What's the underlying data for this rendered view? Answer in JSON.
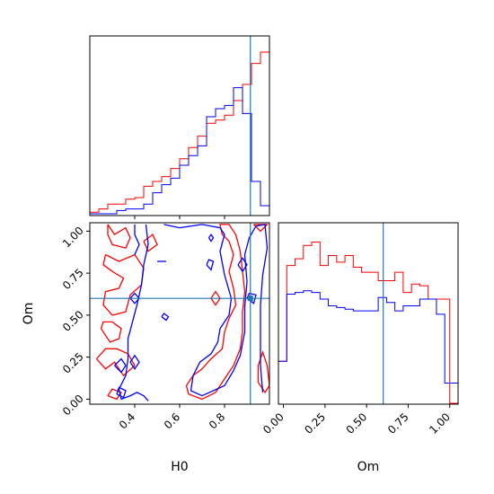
{
  "chart_data": {
    "type": "corner_plot",
    "parameters": [
      "H0",
      "Om"
    ],
    "series_colors": [
      "#ff0000",
      "#0000ff"
    ],
    "truth": {
      "H0": 0.915,
      "Om": 0.6,
      "color": "#1f77b4"
    },
    "h0_hist": {
      "xlim": [
        0.2,
        1.0
      ],
      "x_ticks": [
        "0.4",
        "0.6",
        "0.8"
      ],
      "x_tick_values": [
        0.4,
        0.6,
        0.8
      ],
      "bin_edges": [
        0.2,
        0.24,
        0.28,
        0.32,
        0.36,
        0.4,
        0.44,
        0.48,
        0.52,
        0.56,
        0.6,
        0.64,
        0.68,
        0.72,
        0.76,
        0.8,
        0.84,
        0.88,
        0.92,
        0.96,
        1.0
      ],
      "red": [
        0.01,
        0.03,
        0.06,
        0.06,
        0.09,
        0.1,
        0.17,
        0.2,
        0.23,
        0.28,
        0.34,
        0.41,
        0.48,
        0.56,
        0.58,
        0.61,
        0.7,
        0.8,
        0.93,
        1.0
      ],
      "blue": [
        0.0,
        0.0,
        0.0,
        0.02,
        0.03,
        0.03,
        0.06,
        0.13,
        0.18,
        0.22,
        0.3,
        0.36,
        0.42,
        0.6,
        0.65,
        0.67,
        0.78,
        0.62,
        0.2,
        0.05
      ]
    },
    "om_hist": {
      "xlim": [
        -0.03,
        1.05
      ],
      "x_ticks": [
        "0.00",
        "0.25",
        "0.50",
        "0.75",
        "1.00"
      ],
      "x_tick_values": [
        0.0,
        0.25,
        0.5,
        0.75,
        1.0
      ],
      "bin_edges": [
        -0.03,
        0.02,
        0.07,
        0.12,
        0.17,
        0.22,
        0.27,
        0.32,
        0.37,
        0.42,
        0.47,
        0.52,
        0.57,
        0.62,
        0.67,
        0.72,
        0.77,
        0.82,
        0.87,
        0.92,
        0.97,
        1.0,
        1.05
      ],
      "red": [
        0.25,
        0.82,
        0.86,
        0.94,
        0.96,
        0.82,
        0.88,
        0.84,
        0.88,
        0.81,
        0.78,
        0.78,
        0.73,
        0.73,
        0.78,
        0.66,
        0.71,
        0.7,
        0.62,
        0.62,
        0.62,
        0.0
      ],
      "blue": [
        0.25,
        0.65,
        0.66,
        0.67,
        0.66,
        0.62,
        0.58,
        0.57,
        0.56,
        0.55,
        0.55,
        0.55,
        0.63,
        0.6,
        0.55,
        0.58,
        0.58,
        0.62,
        0.62,
        0.53,
        0.12,
        0.12
      ]
    },
    "contour": {
      "xlabel": "H0",
      "ylabel": "Om",
      "xlim": [
        0.2,
        1.0
      ],
      "ylim": [
        -0.03,
        1.05
      ],
      "x_ticks": [
        "0.4",
        "0.6",
        "0.8"
      ],
      "x_tick_values": [
        0.4,
        0.6,
        0.8
      ],
      "y_ticks": [
        "0.00",
        "0.25",
        "0.50",
        "0.75",
        "1.00"
      ],
      "y_tick_values": [
        0.0,
        0.25,
        0.5,
        0.75,
        1.0
      ],
      "red_contours": [
        [
          [
            0.28,
            1.04
          ],
          [
            0.31,
            0.98
          ],
          [
            0.36,
            1.02
          ],
          [
            0.38,
            0.96
          ],
          [
            0.36,
            0.9
          ],
          [
            0.3,
            0.92
          ],
          [
            0.28,
            0.98
          ],
          [
            0.28,
            1.04
          ]
        ],
        [
          [
            0.27,
            0.86
          ],
          [
            0.33,
            0.82
          ],
          [
            0.4,
            0.86
          ],
          [
            0.44,
            0.78
          ],
          [
            0.43,
            0.68
          ],
          [
            0.38,
            0.62
          ],
          [
            0.36,
            0.52
          ],
          [
            0.3,
            0.5
          ],
          [
            0.26,
            0.56
          ],
          [
            0.27,
            0.64
          ],
          [
            0.33,
            0.66
          ],
          [
            0.35,
            0.72
          ],
          [
            0.3,
            0.76
          ],
          [
            0.26,
            0.8
          ],
          [
            0.27,
            0.86
          ]
        ],
        [
          [
            0.25,
            0.42
          ],
          [
            0.29,
            0.34
          ],
          [
            0.33,
            0.36
          ],
          [
            0.34,
            0.42
          ],
          [
            0.3,
            0.46
          ],
          [
            0.26,
            0.46
          ],
          [
            0.25,
            0.42
          ]
        ],
        [
          [
            0.23,
            0.24
          ],
          [
            0.27,
            0.18
          ],
          [
            0.31,
            0.22
          ],
          [
            0.35,
            0.14
          ],
          [
            0.4,
            0.2
          ],
          [
            0.37,
            0.27
          ],
          [
            0.32,
            0.3
          ],
          [
            0.27,
            0.3
          ],
          [
            0.23,
            0.24
          ]
        ],
        [
          [
            0.28,
            0.02
          ],
          [
            0.32,
            0.0
          ],
          [
            0.34,
            0.04
          ],
          [
            0.3,
            0.06
          ],
          [
            0.28,
            0.02
          ]
        ],
        [
          [
            0.44,
            0.94
          ],
          [
            0.46,
            0.88
          ],
          [
            0.5,
            0.92
          ],
          [
            0.48,
            0.98
          ],
          [
            0.44,
            0.94
          ]
        ],
        [
          [
            0.79,
            0.98
          ],
          [
            0.82,
            0.94
          ],
          [
            0.84,
            0.86
          ],
          [
            0.82,
            0.76
          ],
          [
            0.84,
            0.66
          ],
          [
            0.85,
            0.56
          ],
          [
            0.82,
            0.48
          ],
          [
            0.8,
            0.4
          ],
          [
            0.79,
            0.3
          ],
          [
            0.74,
            0.24
          ],
          [
            0.7,
            0.18
          ],
          [
            0.66,
            0.14
          ],
          [
            0.63,
            0.08
          ],
          [
            0.64,
            0.03
          ],
          [
            0.7,
            0.0
          ],
          [
            0.76,
            0.04
          ],
          [
            0.8,
            0.12
          ],
          [
            0.84,
            0.2
          ],
          [
            0.87,
            0.3
          ],
          [
            0.88,
            0.4
          ],
          [
            0.88,
            0.52
          ],
          [
            0.89,
            0.64
          ],
          [
            0.88,
            0.76
          ],
          [
            0.87,
            0.88
          ],
          [
            0.85,
            0.98
          ],
          [
            0.82,
            1.04
          ],
          [
            0.78,
            1.04
          ],
          [
            0.79,
            0.98
          ]
        ],
        [
          [
            0.74,
            0.6
          ],
          [
            0.76,
            0.56
          ],
          [
            0.78,
            0.6
          ],
          [
            0.76,
            0.64
          ],
          [
            0.74,
            0.6
          ]
        ],
        [
          [
            0.93,
            1.04
          ],
          [
            0.96,
            1.0
          ],
          [
            0.99,
            1.04
          ],
          [
            0.93,
            1.04
          ]
        ],
        [
          [
            0.95,
            0.1
          ],
          [
            0.98,
            0.04
          ],
          [
            1.0,
            0.08
          ],
          [
            0.99,
            0.2
          ],
          [
            0.97,
            0.28
          ],
          [
            0.95,
            0.2
          ],
          [
            0.95,
            0.1
          ]
        ]
      ],
      "blue_contours": [
        [
          [
            0.53,
            1.04
          ],
          [
            0.6,
            1.02
          ],
          [
            0.7,
            1.04
          ],
          [
            0.78,
            1.02
          ],
          [
            0.8,
            0.98
          ],
          [
            0.78,
            0.88
          ],
          [
            0.8,
            0.74
          ],
          [
            0.83,
            0.6
          ],
          [
            0.82,
            0.5
          ],
          [
            0.78,
            0.42
          ],
          [
            0.77,
            0.34
          ],
          [
            0.74,
            0.27
          ],
          [
            0.69,
            0.22
          ],
          [
            0.66,
            0.14
          ],
          [
            0.65,
            0.05
          ],
          [
            0.7,
            0.02
          ],
          [
            0.8,
            0.08
          ],
          [
            0.84,
            0.17
          ],
          [
            0.87,
            0.26
          ],
          [
            0.89,
            0.4
          ],
          [
            0.89,
            0.55
          ],
          [
            0.9,
            0.7
          ],
          [
            0.89,
            0.86
          ],
          [
            0.91,
            0.96
          ],
          [
            0.94,
            1.03
          ],
          [
            0.98,
            1.04
          ],
          [
            0.99,
            0.9
          ],
          [
            0.97,
            0.74
          ],
          [
            0.96,
            0.56
          ],
          [
            0.96,
            0.4
          ],
          [
            0.96,
            0.2
          ],
          [
            0.97,
            0.04
          ]
        ],
        [
          [
            0.45,
            1.04
          ],
          [
            0.46,
            0.92
          ],
          [
            0.44,
            0.8
          ],
          [
            0.43,
            0.68
          ],
          [
            0.41,
            0.56
          ],
          [
            0.39,
            0.46
          ],
          [
            0.37,
            0.36
          ],
          [
            0.37,
            0.24
          ],
          [
            0.36,
            0.14
          ],
          [
            0.33,
            0.06
          ],
          [
            0.34,
            0.0
          ],
          [
            0.38,
            0.02
          ],
          [
            0.41,
            0.04
          ],
          [
            0.44,
            0.02
          ],
          [
            0.46,
            -0.01
          ]
        ],
        [
          [
            0.4,
            1.04
          ],
          [
            0.4,
            0.98
          ],
          [
            0.42,
            0.92
          ],
          [
            0.4,
            0.86
          ]
        ],
        [
          [
            0.38,
            0.6
          ],
          [
            0.4,
            0.57
          ],
          [
            0.42,
            0.6
          ],
          [
            0.4,
            0.63
          ],
          [
            0.38,
            0.6
          ]
        ],
        [
          [
            0.31,
            0.2
          ],
          [
            0.34,
            0.16
          ],
          [
            0.36,
            0.2
          ],
          [
            0.34,
            0.24
          ],
          [
            0.31,
            0.2
          ]
        ],
        [
          [
            0.38,
            0.22
          ],
          [
            0.4,
            0.18
          ],
          [
            0.42,
            0.22
          ],
          [
            0.4,
            0.26
          ],
          [
            0.38,
            0.22
          ]
        ],
        [
          [
            0.32,
            0.03
          ],
          [
            0.35,
            0.01
          ],
          [
            0.36,
            0.05
          ],
          [
            0.33,
            0.07
          ],
          [
            0.32,
            0.03
          ]
        ],
        [
          [
            0.52,
            0.49
          ],
          [
            0.54,
            0.47
          ],
          [
            0.55,
            0.49
          ],
          [
            0.53,
            0.51
          ],
          [
            0.52,
            0.49
          ]
        ],
        [
          [
            0.73,
            0.96
          ],
          [
            0.74,
            0.94
          ],
          [
            0.75,
            0.96
          ],
          [
            0.74,
            0.98
          ],
          [
            0.73,
            0.96
          ]
        ],
        [
          [
            0.72,
            0.8
          ],
          [
            0.74,
            0.77
          ],
          [
            0.75,
            0.82
          ],
          [
            0.73,
            0.83
          ],
          [
            0.72,
            0.8
          ]
        ],
        [
          [
            0.86,
            0.8
          ],
          [
            0.88,
            0.76
          ],
          [
            0.9,
            0.8
          ],
          [
            0.88,
            0.84
          ],
          [
            0.86,
            0.8
          ]
        ],
        [
          [
            0.9,
            0.6
          ],
          [
            0.93,
            0.57
          ],
          [
            0.94,
            0.62
          ],
          [
            0.91,
            0.63
          ],
          [
            0.9,
            0.6
          ]
        ],
        [
          [
            0.5,
            0.82
          ],
          [
            0.52,
            0.82
          ],
          [
            0.54,
            0.82
          ]
        ]
      ]
    }
  }
}
